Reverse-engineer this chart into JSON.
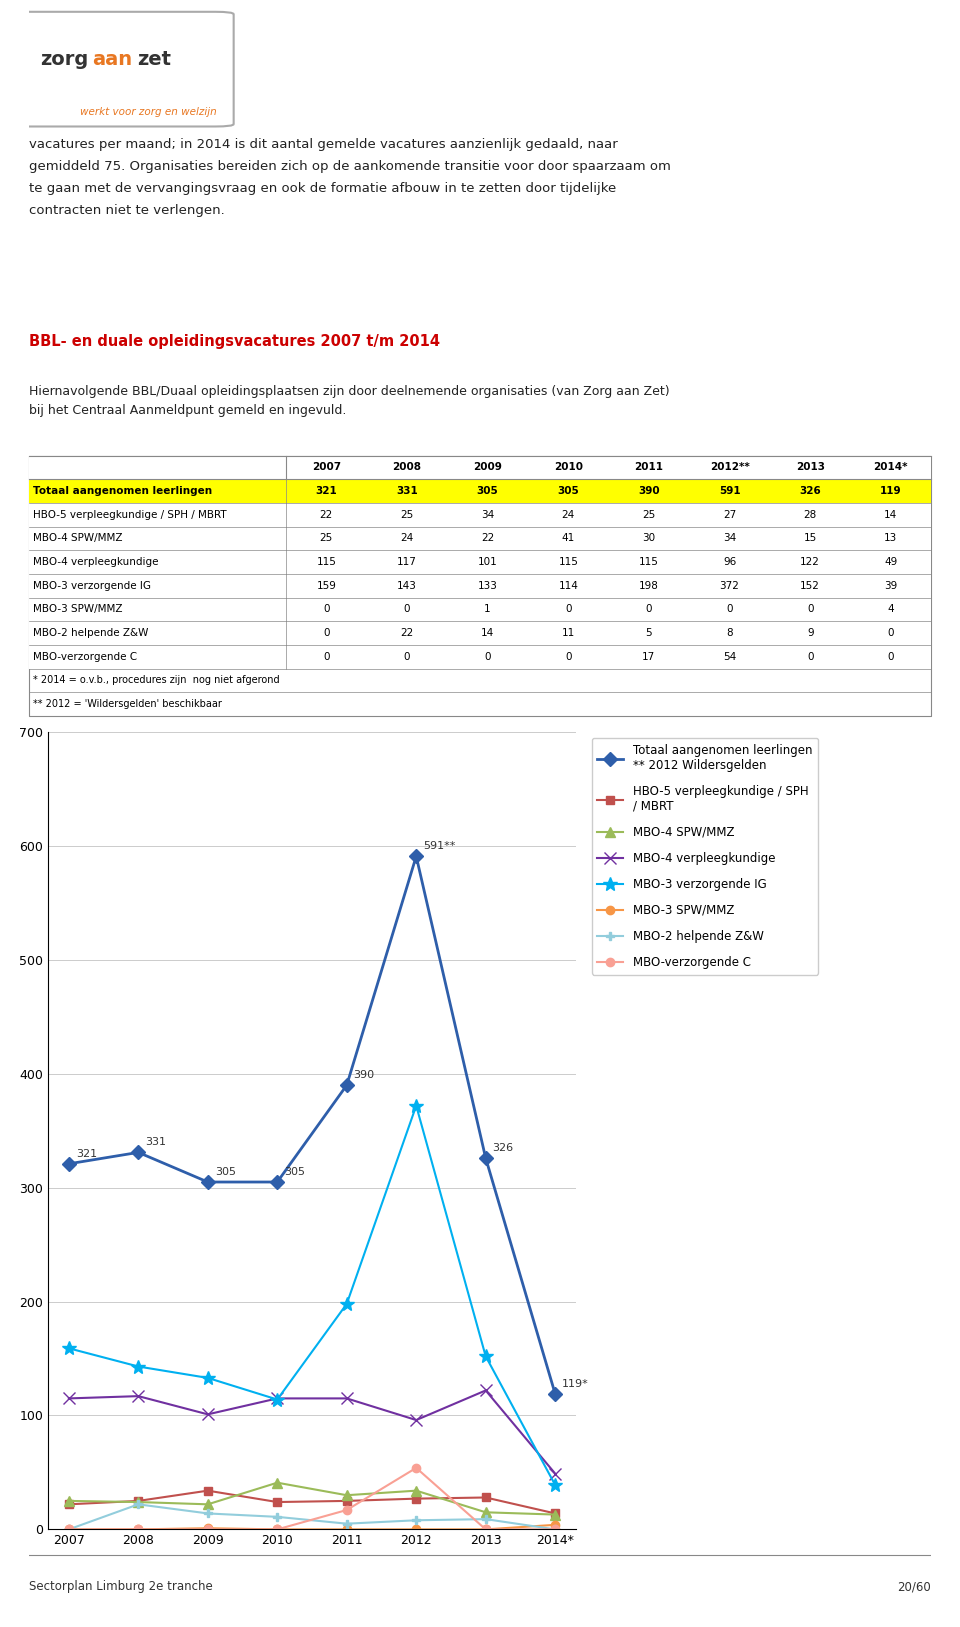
{
  "header_text": "vacatures per maand; in 2014 is dit aantal gemelde vacatures aanzienlijk gedaald, naar\ngemiddeld 75. Organisaties bereiden zich op de aankomende transitie voor door spaarzaam om\nte gaan met de vervangingsvraag en ook de formatie afbouw in te zetten door tijdelijke\ncontracten niet te verlengen.",
  "section_title": "BBL- en duale opleidingsvacatures 2007 t/m 2014",
  "section_subtitle": "Hiernavolgende BBL/Duaal opleidingsplaatsen zijn door deelnemende organisaties (van Zorg aan Zet)\nbij het Centraal Aanmeldpunt gemeld en ingevuld.",
  "table_years": [
    "2007",
    "2008",
    "2009",
    "2010",
    "2011",
    "2012**",
    "2013",
    "2014*"
  ],
  "table_rows": [
    {
      "label": "Totaal aangenomen leerlingen",
      "values": [
        321,
        331,
        305,
        305,
        390,
        591,
        326,
        119
      ],
      "highlight": true
    },
    {
      "label": "HBO-5 verpleegkundige / SPH / MBRT",
      "values": [
        22,
        25,
        34,
        24,
        25,
        27,
        28,
        14
      ],
      "highlight": false
    },
    {
      "label": "MBO-4 SPW/MMZ",
      "values": [
        25,
        24,
        22,
        41,
        30,
        34,
        15,
        13
      ],
      "highlight": false
    },
    {
      "label": "MBO-4 verpleegkundige",
      "values": [
        115,
        117,
        101,
        115,
        115,
        96,
        122,
        49
      ],
      "highlight": false
    },
    {
      "label": "MBO-3 verzorgende IG",
      "values": [
        159,
        143,
        133,
        114,
        198,
        372,
        152,
        39
      ],
      "highlight": false
    },
    {
      "label": "MBO-3 SPW/MMZ",
      "values": [
        0,
        0,
        1,
        0,
        0,
        0,
        0,
        4
      ],
      "highlight": false
    },
    {
      "label": "MBO-2 helpende Z&W",
      "values": [
        0,
        22,
        14,
        11,
        5,
        8,
        9,
        0
      ],
      "highlight": false
    },
    {
      "label": "MBO-verzorgende C",
      "values": [
        0,
        0,
        0,
        0,
        17,
        54,
        0,
        0
      ],
      "highlight": false
    }
  ],
  "table_footnotes": [
    "* 2014 = o.v.b., procedures zijn  nog niet afgerond",
    "** 2012 = 'Wildersgelden' beschikbaar"
  ],
  "x_labels": [
    "2007",
    "2008",
    "2009",
    "2010",
    "2011",
    "2012",
    "2013",
    "2014*"
  ],
  "series": [
    {
      "label": "Totaal aangenomen leerlingen\n** 2012 Wildersgelden",
      "values": [
        321,
        331,
        305,
        305,
        390,
        591,
        326,
        119
      ],
      "color": "#2E5EAA",
      "marker": "D",
      "linewidth": 2.0,
      "markersize": 7,
      "annotations": [
        "321",
        "331",
        "305",
        "305",
        "390",
        "591**",
        "326",
        "119*"
      ]
    },
    {
      "label": "HBO-5 verpleegkundige / SPH\n/ MBRT",
      "values": [
        22,
        25,
        34,
        24,
        25,
        27,
        28,
        14
      ],
      "color": "#C0504D",
      "marker": "s",
      "linewidth": 1.5,
      "markersize": 6,
      "annotations": []
    },
    {
      "label": "MBO-4 SPW/MMZ",
      "values": [
        25,
        24,
        22,
        41,
        30,
        34,
        15,
        13
      ],
      "color": "#9BBB59",
      "marker": "^",
      "linewidth": 1.5,
      "markersize": 7,
      "annotations": []
    },
    {
      "label": "MBO-4 verpleegkundige",
      "values": [
        115,
        117,
        101,
        115,
        115,
        96,
        122,
        49
      ],
      "color": "#7030A0",
      "marker": "x",
      "linewidth": 1.5,
      "markersize": 8,
      "annotations": []
    },
    {
      "label": "MBO-3 verzorgende IG",
      "values": [
        159,
        143,
        133,
        114,
        198,
        372,
        152,
        39
      ],
      "color": "#00B0F0",
      "marker": "*",
      "linewidth": 1.5,
      "markersize": 10,
      "annotations": []
    },
    {
      "label": "MBO-3 SPW/MMZ",
      "values": [
        0,
        0,
        1,
        0,
        0,
        0,
        0,
        4
      ],
      "color": "#F79646",
      "marker": "o",
      "linewidth": 1.5,
      "markersize": 6,
      "annotations": []
    },
    {
      "label": "MBO-2 helpende Z&W",
      "values": [
        0,
        22,
        14,
        11,
        5,
        8,
        9,
        0
      ],
      "color": "#92CDDC",
      "marker": "P",
      "linewidth": 1.5,
      "markersize": 6,
      "annotations": []
    },
    {
      "label": "MBO-verzorgende C",
      "values": [
        0,
        0,
        0,
        0,
        17,
        54,
        0,
        0
      ],
      "color": "#F9A094",
      "marker": "o",
      "linewidth": 1.5,
      "markersize": 6,
      "annotations": []
    }
  ],
  "ylim": [
    0,
    700
  ],
  "yticks": [
    0,
    100,
    200,
    300,
    400,
    500,
    600,
    700
  ],
  "footer_left": "Sectorplan Limburg 2e tranche",
  "footer_right": "20/60",
  "logo_subtitle": "werkt voor zorg en welzijn",
  "background_color": "#FFFFFF"
}
